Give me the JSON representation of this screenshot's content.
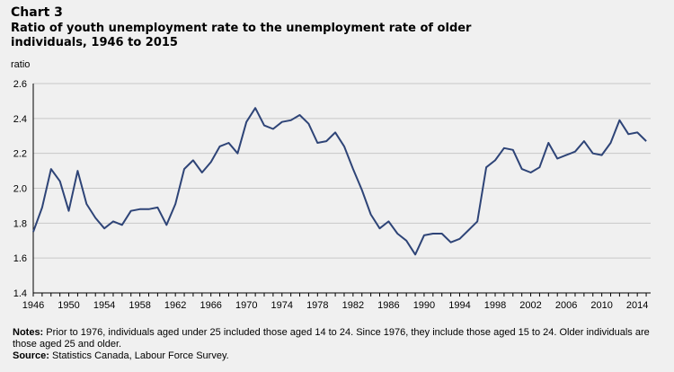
{
  "header": {
    "chart_label": "Chart 3",
    "title": "Ratio of youth unemployment rate to the unemployment rate of older individuals, 1946 to 2015"
  },
  "footer": {
    "notes_label": "Notes:",
    "notes_text": " Prior to 1976, individuals aged under 25 included those aged 14 to 24. Since 1976, they include those aged 15 to 24. Older individuals are those aged 25 and older.",
    "source_label": "Source:",
    "source_text": " Statistics Canada, Labour Force Survey."
  },
  "colors": {
    "line": "#2e4477",
    "axis": "#000000",
    "grid": "#c8c8c8"
  },
  "chart_data": {
    "type": "line",
    "title": "Ratio of youth unemployment rate to the unemployment rate of older individuals, 1946 to 2015",
    "ylabel": "ratio",
    "xlabel": "",
    "ylim": [
      1.4,
      2.6
    ],
    "yticks": [
      "1.4",
      "1.6",
      "1.8",
      "2.0",
      "2.2",
      "2.4",
      "2.6"
    ],
    "xticks": [
      "1946",
      "1950",
      "1954",
      "1958",
      "1962",
      "1966",
      "1970",
      "1974",
      "1978",
      "1982",
      "1986",
      "1990",
      "1994",
      "1998",
      "2002",
      "2006",
      "2010",
      "2014"
    ],
    "grid": true,
    "x": [
      1946,
      1947,
      1948,
      1949,
      1950,
      1951,
      1952,
      1953,
      1954,
      1955,
      1956,
      1957,
      1958,
      1959,
      1960,
      1961,
      1962,
      1963,
      1964,
      1965,
      1966,
      1967,
      1968,
      1969,
      1970,
      1971,
      1972,
      1973,
      1974,
      1975,
      1976,
      1977,
      1978,
      1979,
      1980,
      1981,
      1982,
      1983,
      1984,
      1985,
      1986,
      1987,
      1988,
      1989,
      1990,
      1991,
      1992,
      1993,
      1994,
      1995,
      1996,
      1997,
      1998,
      1999,
      2000,
      2001,
      2002,
      2003,
      2004,
      2005,
      2006,
      2007,
      2008,
      2009,
      2010,
      2011,
      2012,
      2013,
      2014,
      2015
    ],
    "values": [
      1.75,
      1.89,
      2.11,
      2.04,
      1.87,
      2.1,
      1.91,
      1.83,
      1.77,
      1.81,
      1.79,
      1.87,
      1.88,
      1.88,
      1.89,
      1.79,
      1.91,
      2.11,
      2.16,
      2.09,
      2.15,
      2.24,
      2.26,
      2.2,
      2.38,
      2.46,
      2.36,
      2.34,
      2.38,
      2.39,
      2.42,
      2.37,
      2.26,
      2.27,
      2.32,
      2.24,
      2.11,
      1.99,
      1.85,
      1.77,
      1.81,
      1.74,
      1.7,
      1.62,
      1.73,
      1.74,
      1.74,
      1.69,
      1.71,
      1.76,
      1.81,
      2.12,
      2.16,
      2.23,
      2.22,
      2.11,
      2.09,
      2.12,
      2.26,
      2.17,
      2.19,
      2.21,
      2.27,
      2.2,
      2.19,
      2.26,
      2.39,
      2.31,
      2.32,
      2.27
    ]
  }
}
